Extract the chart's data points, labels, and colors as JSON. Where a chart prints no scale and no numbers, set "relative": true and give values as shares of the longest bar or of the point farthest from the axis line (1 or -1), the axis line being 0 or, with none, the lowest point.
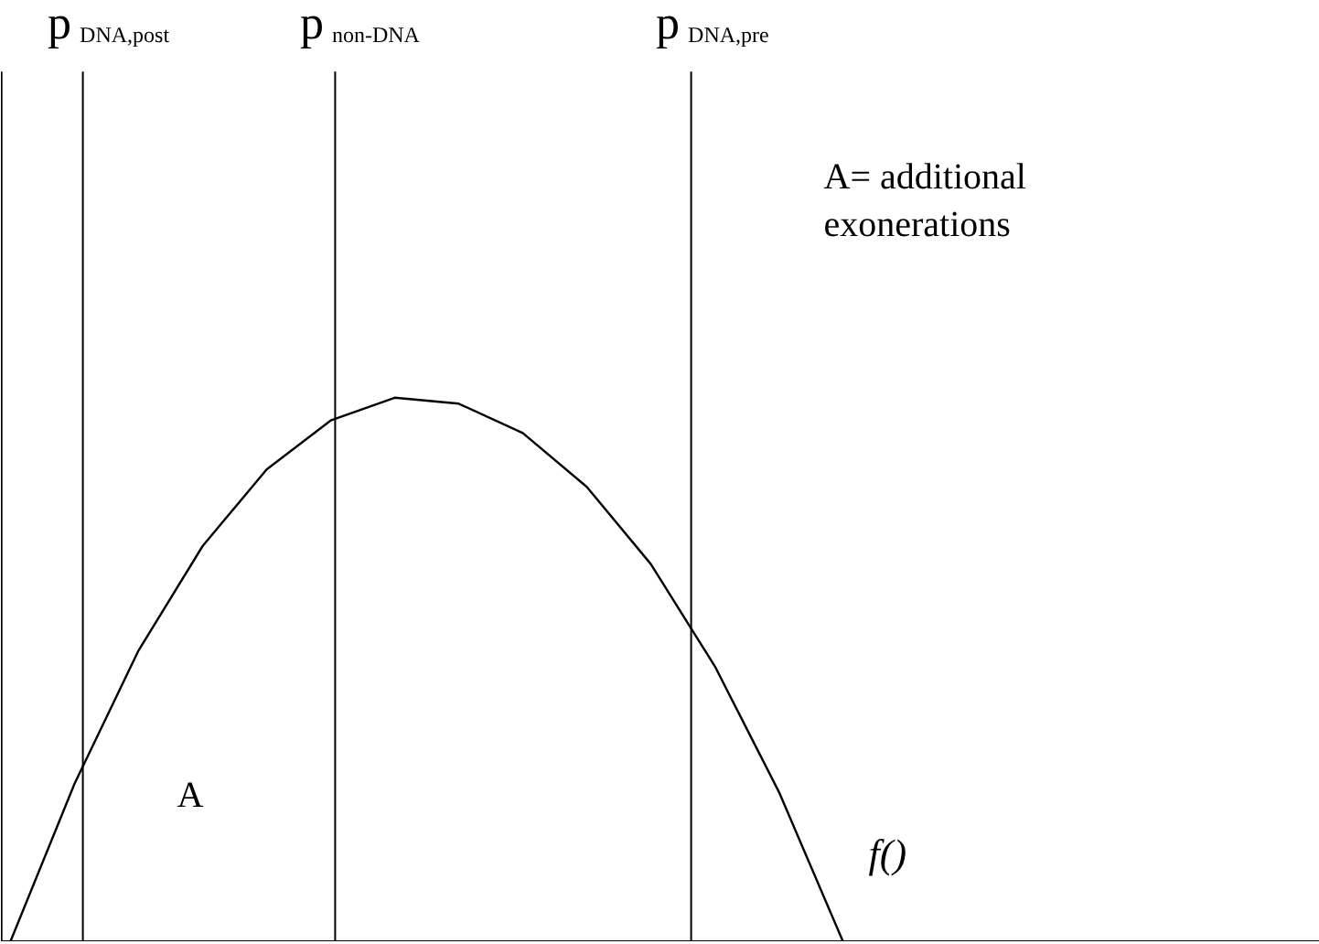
{
  "chart_data": {
    "type": "line",
    "relative": true,
    "categories": [
      null,
      null,
      null,
      null,
      null,
      null,
      null,
      null,
      null,
      null,
      null,
      null,
      null,
      null,
      null,
      null,
      null,
      null,
      null,
      null,
      null
    ],
    "series": [
      {
        "name": "f()",
        "color": "#000000",
        "values": [
          0,
          0.29,
          0.535,
          0.727,
          0.868,
          0.958,
          1.0,
          0.989,
          0.935,
          0.836,
          0.694,
          0.506,
          0.275,
          0,
          null,
          null,
          null,
          null,
          null,
          null,
          null
        ]
      }
    ],
    "annotations": [
      "p$_{DNA,post}$",
      "p$_{non-DNA}$",
      "p$_{DNA,pre}$",
      "A= additional exonerations",
      "A"
    ],
    "marker": "none",
    "line_style": "solid"
  }
}
